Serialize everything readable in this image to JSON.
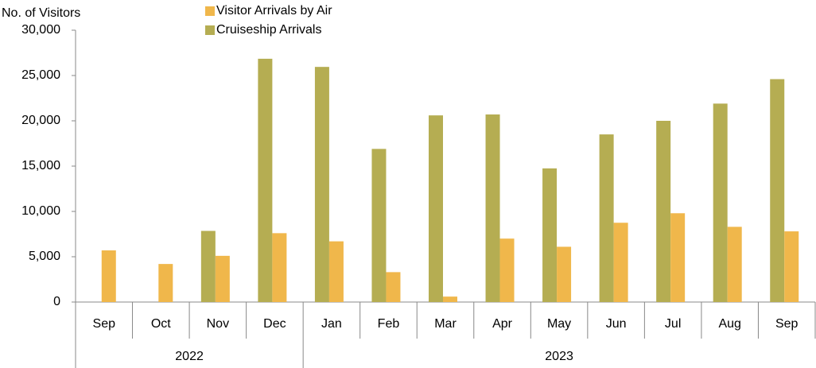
{
  "chart_data": {
    "type": "bar",
    "y_axis_label": "No. of  Visitors",
    "categories": [
      "Sep",
      "Oct",
      "Nov",
      "Dec",
      "Jan",
      "Feb",
      "Mar",
      "Apr",
      "May",
      "Jun",
      "Jul",
      "Aug",
      "Sep"
    ],
    "category_groups": [
      {
        "label": "2022",
        "count": 4
      },
      {
        "label": "2023",
        "count": 9
      }
    ],
    "series": [
      {
        "name": "Cruiseship Arrivals",
        "color": "#b5ad52",
        "values": [
          null,
          null,
          7850,
          26850,
          25950,
          16900,
          20600,
          20700,
          14750,
          18500,
          20000,
          21900,
          24600
        ]
      },
      {
        "name": "Visitor Arrivals by Air",
        "color": "#f0b74b",
        "values": [
          5700,
          4200,
          5100,
          7600,
          6700,
          3300,
          600,
          7000,
          6100,
          8750,
          9800,
          8300,
          7800
        ]
      }
    ],
    "legend_order": [
      1,
      0
    ],
    "ylim": [
      0,
      30000
    ],
    "yticks": [
      0,
      {
        "value": 5000,
        "label": "5,000"
      },
      {
        "value": 10000,
        "label": "10,000"
      },
      {
        "value": 15000,
        "label": "15,000"
      },
      {
        "value": 20000,
        "label": "20,000"
      },
      {
        "value": 25000,
        "label": "25,000"
      },
      {
        "value": 30000,
        "label": "30,000"
      }
    ],
    "grid": false
  }
}
